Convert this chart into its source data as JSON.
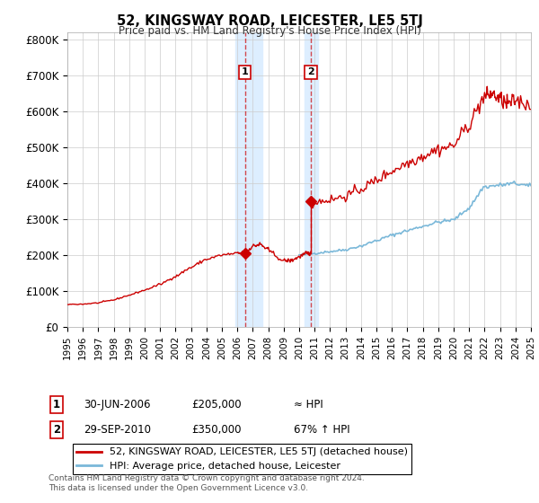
{
  "title": "52, KINGSWAY ROAD, LEICESTER, LE5 5TJ",
  "subtitle": "Price paid vs. HM Land Registry's House Price Index (HPI)",
  "ylabel_vals": [
    0,
    100000,
    200000,
    300000,
    400000,
    500000,
    600000,
    700000,
    800000
  ],
  "ylabel_labels": [
    "£0",
    "£100K",
    "£200K",
    "£300K",
    "£400K",
    "£500K",
    "£600K",
    "£700K",
    "£800K"
  ],
  "ylim": [
    0,
    820000
  ],
  "x_start_year": 1995,
  "x_end_year": 2025,
  "hpi_color": "#7ab8d9",
  "price_color": "#cc0000",
  "sale1_date": 2006.5,
  "sale1_price": 205000,
  "sale2_date": 2010.75,
  "sale2_price": 350000,
  "legend_line1": "52, KINGSWAY ROAD, LEICESTER, LE5 5TJ (detached house)",
  "legend_line2": "HPI: Average price, detached house, Leicester",
  "annotation1_label": "1",
  "annotation1_date": "30-JUN-2006",
  "annotation1_price": "£205,000",
  "annotation1_hpi": "≈ HPI",
  "annotation2_label": "2",
  "annotation2_date": "29-SEP-2010",
  "annotation2_price": "£350,000",
  "annotation2_hpi": "67% ↑ HPI",
  "footer": "Contains HM Land Registry data © Crown copyright and database right 2024.\nThis data is licensed under the Open Government Licence v3.0.",
  "grid_color": "#cccccc",
  "bg_color": "#ffffff",
  "highlight_color": "#ddeeff"
}
